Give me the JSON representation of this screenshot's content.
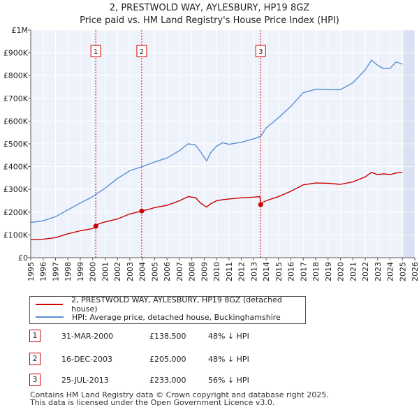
{
  "title": "2, PRESTWOLD WAY, AYLESBURY, HP19 8GZ",
  "subtitle": "Price paid vs. HM Land Registry's House Price Index (HPI)",
  "colors": {
    "property": "#cc0000",
    "hpi": "#5b8fd6",
    "grid": "#ffffff",
    "plot_bg": "#eef2fb",
    "shade": "#dfe6f5"
  },
  "legend": {
    "property_label": "2, PRESTWOLD WAY, AYLESBURY, HP19 8GZ (detached house)",
    "hpi_label": "HPI: Average price, detached house, Buckinghamshire"
  },
  "sales": [
    {
      "num": "1",
      "date": "31-MAR-2000",
      "price": "£138,500",
      "hpi_delta": "48% ↓ HPI"
    },
    {
      "num": "2",
      "date": "16-DEC-2003",
      "price": "£205,000",
      "hpi_delta": "48% ↓ HPI"
    },
    {
      "num": "3",
      "date": "25-JUL-2013",
      "price": "£233,000",
      "hpi_delta": "56% ↓ HPI"
    }
  ],
  "footer": {
    "line1": "Contains HM Land Registry data © Crown copyright and database right 2025.",
    "line2": "This data is licensed under the Open Government Licence v3.0."
  },
  "chart_data": {
    "type": "line",
    "title": "2, PRESTWOLD WAY, AYLESBURY, HP19 8GZ",
    "xlim": [
      1995,
      2026
    ],
    "ylim": [
      0,
      1000000
    ],
    "y_ticks": [
      0,
      100000,
      200000,
      300000,
      400000,
      500000,
      600000,
      700000,
      800000,
      900000,
      1000000
    ],
    "y_tick_labels": [
      "£0",
      "£100K",
      "£200K",
      "£300K",
      "£400K",
      "£500K",
      "£600K",
      "£700K",
      "£800K",
      "£900K",
      "£1M"
    ],
    "x_ticks": [
      1995,
      1996,
      1997,
      1998,
      1999,
      2000,
      2001,
      2002,
      2003,
      2004,
      2005,
      2006,
      2007,
      2008,
      2009,
      2010,
      2011,
      2012,
      2013,
      2014,
      2015,
      2016,
      2017,
      2018,
      2019,
      2020,
      2021,
      2022,
      2023,
      2024,
      2025,
      2026
    ],
    "x_tick_labels": [
      "1995",
      "1996",
      "1997",
      "1998",
      "1999",
      "2000",
      "2001",
      "2002",
      "2003",
      "2004",
      "2005",
      "2006",
      "2007",
      "2008",
      "2009",
      "2010",
      "2011",
      "2012",
      "2013",
      "2014",
      "2015",
      "2016",
      "2017",
      "2018",
      "2019",
      "2020",
      "2021",
      "2022",
      "2023",
      "2024",
      "2025",
      "2026"
    ],
    "future_shade_from": 2025.1,
    "series": [
      {
        "name": "2, PRESTWOLD WAY, AYLESBURY, HP19 8GZ (detached house)",
        "color": "#cc0000",
        "x": [
          1995.0,
          1996.0,
          1997.0,
          1998.0,
          1999.0,
          2000.0,
          2000.25,
          2000.5,
          2001.0,
          2002.0,
          2003.0,
          2003.96,
          2004.5,
          2005.0,
          2006.0,
          2007.0,
          2007.7,
          2008.3,
          2008.7,
          2009.2,
          2009.5,
          2010.0,
          2010.5,
          2011.0,
          2012.0,
          2013.0,
          2013.5,
          2013.56,
          2013.7,
          2014.0,
          2015.0,
          2016.0,
          2017.0,
          2018.0,
          2019.0,
          2020.0,
          2021.0,
          2022.0,
          2022.5,
          2023.0,
          2023.5,
          2024.0,
          2024.5,
          2025.0
        ],
        "y": [
          79000,
          81000,
          88000,
          105000,
          118000,
          128000,
          138500,
          149000,
          157000,
          170000,
          192000,
          205000,
          212000,
          220000,
          230000,
          250000,
          268000,
          264000,
          240000,
          222000,
          236000,
          250000,
          255000,
          258000,
          263000,
          266000,
          268000,
          233000,
          242000,
          250000,
          268000,
          292000,
          320000,
          328000,
          327000,
          322000,
          333000,
          355000,
          375000,
          365000,
          368000,
          365000,
          372000,
          375000
        ]
      },
      {
        "name": "HPI: Average price, detached house, Buckinghamshire",
        "color": "#5b8fd6",
        "x": [
          1995.0,
          1996.0,
          1997.0,
          1998.0,
          1999.0,
          2000.0,
          2000.5,
          2001.0,
          2002.0,
          2003.0,
          2004.0,
          2004.5,
          2005.0,
          2006.0,
          2007.0,
          2007.7,
          2008.3,
          2008.7,
          2009.2,
          2009.5,
          2010.0,
          2010.5,
          2011.0,
          2012.0,
          2013.0,
          2013.56,
          2014.0,
          2015.0,
          2016.0,
          2017.0,
          2018.0,
          2019.0,
          2020.0,
          2021.0,
          2022.0,
          2022.5,
          2023.0,
          2023.5,
          2024.0,
          2024.5,
          2025.0
        ],
        "y": [
          155000,
          162000,
          180000,
          210000,
          240000,
          268000,
          287000,
          305000,
          348000,
          382000,
          400000,
          410000,
          420000,
          438000,
          470000,
          500000,
          495000,
          465000,
          425000,
          460000,
          490000,
          505000,
          498000,
          507000,
          522000,
          533000,
          570000,
          615000,
          665000,
          725000,
          740000,
          738000,
          738000,
          768000,
          825000,
          868000,
          845000,
          830000,
          832000,
          860000,
          850000
        ]
      }
    ],
    "sale_markers": [
      {
        "label": "1",
        "x": 2000.25,
        "y": 138500
      },
      {
        "label": "2",
        "x": 2003.96,
        "y": 205000
      },
      {
        "label": "3",
        "x": 2013.56,
        "y": 233000
      }
    ]
  }
}
